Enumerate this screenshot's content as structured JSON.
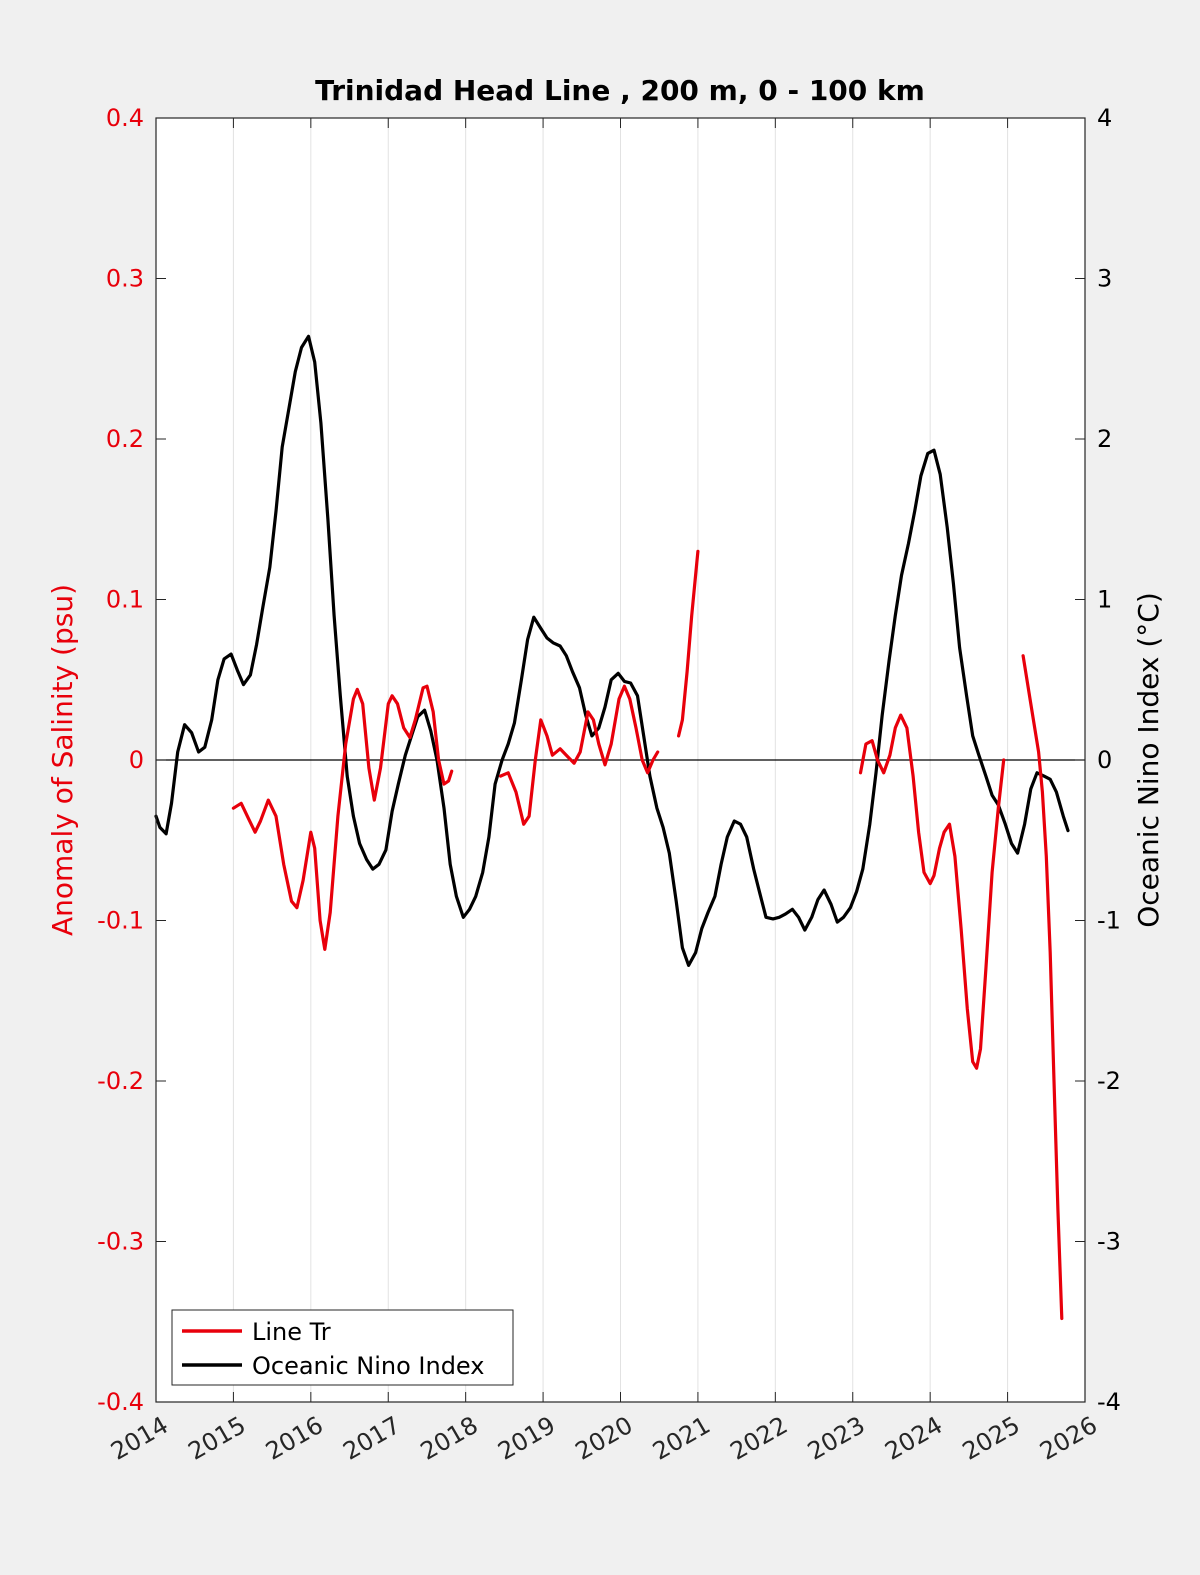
{
  "chart_data": {
    "type": "line",
    "title": "Trinidad Head Line , 200 m, 0 - 100 km",
    "ylabel_left": "Anomaly of Salinity (psu)",
    "ylabel_right": "Oceanic Nino Index (°C)",
    "xlim": [
      2014,
      2026
    ],
    "ylim_left": [
      -0.4,
      0.4
    ],
    "ylim_right": [
      -4,
      4
    ],
    "x_ticks": [
      "2014",
      "2015",
      "2016",
      "2017",
      "2018",
      "2019",
      "2020",
      "2021",
      "2022",
      "2023",
      "2024",
      "2025",
      "2026"
    ],
    "y_left_ticks": [
      "0.4",
      "0.3",
      "0.2",
      "0.1",
      "0",
      "-0.1",
      "-0.2",
      "-0.3",
      "-0.4"
    ],
    "y_right_ticks": [
      "4",
      "3",
      "2",
      "1",
      "0",
      "-1",
      "-2",
      "-3",
      "-4"
    ],
    "grid_x": true,
    "zero_line": true,
    "legend_position": "bottom-left",
    "colors": {
      "salinity": "#e8000b",
      "oni": "#000000",
      "left_axis": "#e8000b",
      "right_axis": "#000000"
    },
    "series": [
      {
        "name": "Line Tr",
        "axis": "left",
        "segments": [
          [
            [
              2015.0,
              -0.03
            ],
            [
              2015.1,
              -0.027
            ],
            [
              2015.2,
              -0.037
            ],
            [
              2015.28,
              -0.045
            ],
            [
              2015.35,
              -0.038
            ],
            [
              2015.45,
              -0.025
            ],
            [
              2015.55,
              -0.035
            ],
            [
              2015.65,
              -0.065
            ],
            [
              2015.75,
              -0.088
            ],
            [
              2015.82,
              -0.092
            ],
            [
              2015.9,
              -0.075
            ],
            [
              2016.0,
              -0.045
            ],
            [
              2016.05,
              -0.055
            ],
            [
              2016.12,
              -0.1
            ],
            [
              2016.18,
              -0.118
            ],
            [
              2016.25,
              -0.095
            ],
            [
              2016.35,
              -0.035
            ],
            [
              2016.45,
              0.01
            ],
            [
              2016.55,
              0.038
            ],
            [
              2016.6,
              0.044
            ],
            [
              2016.67,
              0.035
            ],
            [
              2016.75,
              -0.005
            ],
            [
              2016.82,
              -0.025
            ],
            [
              2016.9,
              -0.005
            ],
            [
              2017.0,
              0.035
            ],
            [
              2017.05,
              0.04
            ],
            [
              2017.12,
              0.035
            ],
            [
              2017.2,
              0.02
            ],
            [
              2017.28,
              0.014
            ],
            [
              2017.35,
              0.025
            ],
            [
              2017.45,
              0.045
            ],
            [
              2017.5,
              0.046
            ],
            [
              2017.58,
              0.03
            ],
            [
              2017.65,
              0.0
            ],
            [
              2017.72,
              -0.015
            ],
            [
              2017.78,
              -0.013
            ],
            [
              2017.82,
              -0.007
            ]
          ],
          [
            [
              2018.45,
              -0.01
            ],
            [
              2018.55,
              -0.008
            ],
            [
              2018.65,
              -0.02
            ],
            [
              2018.75,
              -0.04
            ],
            [
              2018.82,
              -0.035
            ],
            [
              2018.9,
              0.0
            ],
            [
              2018.97,
              0.025
            ],
            [
              2019.05,
              0.015
            ],
            [
              2019.12,
              0.003
            ],
            [
              2019.22,
              0.007
            ],
            [
              2019.3,
              0.003
            ],
            [
              2019.4,
              -0.002
            ],
            [
              2019.48,
              0.005
            ],
            [
              2019.58,
              0.03
            ],
            [
              2019.65,
              0.025
            ],
            [
              2019.72,
              0.01
            ],
            [
              2019.8,
              -0.003
            ],
            [
              2019.88,
              0.01
            ],
            [
              2019.98,
              0.038
            ],
            [
              2020.05,
              0.046
            ],
            [
              2020.12,
              0.038
            ],
            [
              2020.2,
              0.02
            ],
            [
              2020.28,
              0.0
            ],
            [
              2020.35,
              -0.008
            ],
            [
              2020.42,
              0.0
            ],
            [
              2020.48,
              0.005
            ]
          ],
          [
            [
              2020.75,
              0.015
            ],
            [
              2020.8,
              0.025
            ],
            [
              2020.86,
              0.055
            ],
            [
              2020.92,
              0.09
            ],
            [
              2021.0,
              0.13
            ]
          ],
          [
            [
              2023.1,
              -0.008
            ],
            [
              2023.17,
              0.01
            ],
            [
              2023.25,
              0.012
            ],
            [
              2023.32,
              0.0
            ],
            [
              2023.4,
              -0.008
            ],
            [
              2023.48,
              0.003
            ],
            [
              2023.55,
              0.02
            ],
            [
              2023.62,
              0.028
            ],
            [
              2023.7,
              0.02
            ],
            [
              2023.78,
              -0.01
            ],
            [
              2023.85,
              -0.045
            ],
            [
              2023.92,
              -0.07
            ],
            [
              2024.0,
              -0.077
            ],
            [
              2024.05,
              -0.072
            ],
            [
              2024.12,
              -0.055
            ],
            [
              2024.18,
              -0.045
            ],
            [
              2024.25,
              -0.04
            ],
            [
              2024.32,
              -0.06
            ],
            [
              2024.4,
              -0.105
            ],
            [
              2024.48,
              -0.155
            ],
            [
              2024.55,
              -0.188
            ],
            [
              2024.6,
              -0.192
            ],
            [
              2024.65,
              -0.18
            ],
            [
              2024.72,
              -0.13
            ],
            [
              2024.8,
              -0.07
            ],
            [
              2024.88,
              -0.03
            ],
            [
              2024.95,
              0.0
            ]
          ],
          [
            [
              2025.2,
              0.065
            ],
            [
              2025.3,
              0.035
            ],
            [
              2025.4,
              0.005
            ],
            [
              2025.45,
              -0.02
            ],
            [
              2025.5,
              -0.06
            ],
            [
              2025.55,
              -0.12
            ],
            [
              2025.6,
              -0.2
            ],
            [
              2025.65,
              -0.28
            ],
            [
              2025.7,
              -0.348
            ]
          ]
        ]
      },
      {
        "name": "Oceanic Nino Index",
        "axis": "right",
        "segments": [
          [
            [
              2014.0,
              -0.35
            ],
            [
              2014.05,
              -0.42
            ],
            [
              2014.13,
              -0.46
            ],
            [
              2014.2,
              -0.27
            ],
            [
              2014.28,
              0.05
            ],
            [
              2014.37,
              0.22
            ],
            [
              2014.46,
              0.17
            ],
            [
              2014.55,
              0.05
            ],
            [
              2014.63,
              0.08
            ],
            [
              2014.72,
              0.25
            ],
            [
              2014.8,
              0.5
            ],
            [
              2014.88,
              0.63
            ],
            [
              2014.97,
              0.66
            ],
            [
              2015.05,
              0.56
            ],
            [
              2015.13,
              0.47
            ],
            [
              2015.22,
              0.53
            ],
            [
              2015.3,
              0.72
            ],
            [
              2015.38,
              0.95
            ],
            [
              2015.47,
              1.2
            ],
            [
              2015.55,
              1.55
            ],
            [
              2015.63,
              1.95
            ],
            [
              2015.72,
              2.2
            ],
            [
              2015.8,
              2.42
            ],
            [
              2015.88,
              2.57
            ],
            [
              2015.97,
              2.64
            ],
            [
              2016.05,
              2.48
            ],
            [
              2016.13,
              2.1
            ],
            [
              2016.22,
              1.5
            ],
            [
              2016.3,
              0.9
            ],
            [
              2016.38,
              0.4
            ],
            [
              2016.47,
              -0.1
            ],
            [
              2016.55,
              -0.35
            ],
            [
              2016.63,
              -0.52
            ],
            [
              2016.72,
              -0.62
            ],
            [
              2016.8,
              -0.68
            ],
            [
              2016.88,
              -0.65
            ],
            [
              2016.97,
              -0.56
            ],
            [
              2017.05,
              -0.32
            ],
            [
              2017.13,
              -0.15
            ],
            [
              2017.22,
              0.03
            ],
            [
              2017.3,
              0.15
            ],
            [
              2017.38,
              0.27
            ],
            [
              2017.47,
              0.31
            ],
            [
              2017.55,
              0.18
            ],
            [
              2017.63,
              0.0
            ],
            [
              2017.72,
              -0.3
            ],
            [
              2017.8,
              -0.65
            ],
            [
              2017.88,
              -0.85
            ],
            [
              2017.97,
              -0.98
            ],
            [
              2018.05,
              -0.93
            ],
            [
              2018.13,
              -0.85
            ],
            [
              2018.22,
              -0.7
            ],
            [
              2018.3,
              -0.48
            ],
            [
              2018.38,
              -0.15
            ],
            [
              2018.47,
              0.0
            ],
            [
              2018.55,
              0.1
            ],
            [
              2018.63,
              0.23
            ],
            [
              2018.72,
              0.5
            ],
            [
              2018.8,
              0.75
            ],
            [
              2018.88,
              0.89
            ],
            [
              2018.97,
              0.82
            ],
            [
              2019.05,
              0.76
            ],
            [
              2019.13,
              0.73
            ],
            [
              2019.22,
              0.71
            ],
            [
              2019.3,
              0.65
            ],
            [
              2019.38,
              0.55
            ],
            [
              2019.47,
              0.45
            ],
            [
              2019.55,
              0.28
            ],
            [
              2019.63,
              0.15
            ],
            [
              2019.72,
              0.2
            ],
            [
              2019.8,
              0.33
            ],
            [
              2019.88,
              0.5
            ],
            [
              2019.97,
              0.54
            ],
            [
              2020.05,
              0.49
            ],
            [
              2020.13,
              0.48
            ],
            [
              2020.22,
              0.4
            ],
            [
              2020.3,
              0.15
            ],
            [
              2020.38,
              -0.1
            ],
            [
              2020.47,
              -0.3
            ],
            [
              2020.55,
              -0.42
            ],
            [
              2020.63,
              -0.58
            ],
            [
              2020.72,
              -0.88
            ],
            [
              2020.8,
              -1.17
            ],
            [
              2020.88,
              -1.28
            ],
            [
              2020.97,
              -1.2
            ],
            [
              2021.05,
              -1.05
            ],
            [
              2021.13,
              -0.95
            ],
            [
              2021.22,
              -0.85
            ],
            [
              2021.3,
              -0.65
            ],
            [
              2021.38,
              -0.48
            ],
            [
              2021.47,
              -0.38
            ],
            [
              2021.55,
              -0.4
            ],
            [
              2021.63,
              -0.48
            ],
            [
              2021.72,
              -0.68
            ],
            [
              2021.8,
              -0.83
            ],
            [
              2021.88,
              -0.98
            ],
            [
              2021.97,
              -0.99
            ],
            [
              2022.05,
              -0.98
            ],
            [
              2022.13,
              -0.96
            ],
            [
              2022.22,
              -0.93
            ],
            [
              2022.3,
              -0.98
            ],
            [
              2022.38,
              -1.06
            ],
            [
              2022.47,
              -0.98
            ],
            [
              2022.55,
              -0.87
            ],
            [
              2022.63,
              -0.81
            ],
            [
              2022.72,
              -0.9
            ],
            [
              2022.8,
              -1.01
            ],
            [
              2022.88,
              -0.98
            ],
            [
              2022.97,
              -0.92
            ],
            [
              2023.05,
              -0.82
            ],
            [
              2023.13,
              -0.68
            ],
            [
              2023.22,
              -0.4
            ],
            [
              2023.3,
              -0.08
            ],
            [
              2023.38,
              0.28
            ],
            [
              2023.47,
              0.62
            ],
            [
              2023.55,
              0.9
            ],
            [
              2023.63,
              1.15
            ],
            [
              2023.72,
              1.35
            ],
            [
              2023.8,
              1.55
            ],
            [
              2023.88,
              1.77
            ],
            [
              2023.97,
              1.91
            ],
            [
              2024.05,
              1.93
            ],
            [
              2024.13,
              1.78
            ],
            [
              2024.22,
              1.45
            ],
            [
              2024.3,
              1.1
            ],
            [
              2024.38,
              0.7
            ],
            [
              2024.47,
              0.4
            ],
            [
              2024.55,
              0.15
            ],
            [
              2024.63,
              0.03
            ],
            [
              2024.72,
              -0.1
            ],
            [
              2024.8,
              -0.22
            ],
            [
              2024.88,
              -0.28
            ],
            [
              2024.97,
              -0.4
            ],
            [
              2025.05,
              -0.52
            ],
            [
              2025.13,
              -0.58
            ],
            [
              2025.22,
              -0.4
            ],
            [
              2025.3,
              -0.18
            ],
            [
              2025.38,
              -0.08
            ],
            [
              2025.47,
              -0.1
            ],
            [
              2025.55,
              -0.12
            ],
            [
              2025.63,
              -0.2
            ],
            [
              2025.72,
              -0.35
            ],
            [
              2025.78,
              -0.44
            ]
          ]
        ]
      }
    ]
  },
  "legend": {
    "items": [
      {
        "label": "Line Tr",
        "color": "#e8000b"
      },
      {
        "label": "Oceanic Nino Index",
        "color": "#000000"
      }
    ]
  }
}
